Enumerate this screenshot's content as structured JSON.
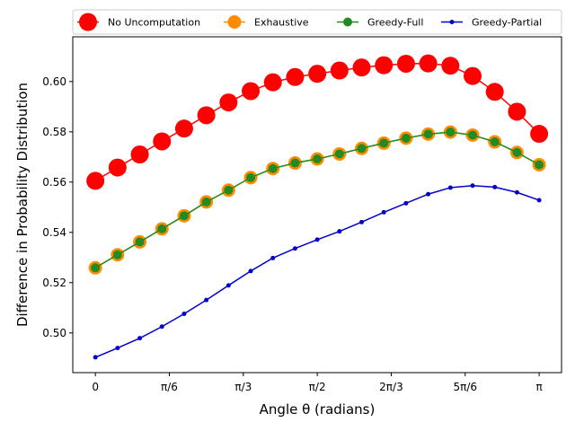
{
  "chart_data": {
    "type": "line",
    "xlabel": "Angle θ (radians)",
    "ylabel": "Difference in Probability Distribution",
    "x_tick_labels": [
      "0",
      "π/6",
      "π/3",
      "π/2",
      "2π/3",
      "5π/6",
      "π"
    ],
    "x_tick_values": [
      0,
      0.5236,
      1.0472,
      1.5708,
      2.0944,
      2.618,
      3.1416
    ],
    "y_tick_labels": [
      "0.50",
      "0.52",
      "0.54",
      "0.56",
      "0.58",
      "0.60"
    ],
    "y_tick_values": [
      0.5,
      0.52,
      0.54,
      0.56,
      0.58,
      0.6
    ],
    "xlim": [
      -0.16,
      3.3
    ],
    "ylim": [
      0.4842,
      0.6178
    ],
    "grid": false,
    "legend_position": "top",
    "x": [
      0,
      0.1571,
      0.3142,
      0.4712,
      0.6283,
      0.7854,
      0.9425,
      1.0996,
      1.2566,
      1.4137,
      1.5708,
      1.7279,
      1.885,
      2.042,
      2.1991,
      2.3562,
      2.5133,
      2.6704,
      2.8274,
      2.9845,
      3.1416
    ],
    "series": [
      {
        "name": "No Uncomputation",
        "color": "#ff0000",
        "marker_color": "#ff0000",
        "marker": "large",
        "values": [
          0.5605,
          0.5658,
          0.571,
          0.5762,
          0.5813,
          0.5866,
          0.5917,
          0.5962,
          0.5997,
          0.6018,
          0.6031,
          0.6044,
          0.6056,
          0.6065,
          0.6071,
          0.6072,
          0.6063,
          0.6022,
          0.5959,
          0.588,
          0.5792
        ]
      },
      {
        "name": "Exhaustive",
        "color": "#ff8c00",
        "marker_color": "#ff8c00",
        "marker": "medium",
        "values": [
          0.5259,
          0.5311,
          0.5362,
          0.5414,
          0.5466,
          0.5521,
          0.5568,
          0.5618,
          0.5654,
          0.5676,
          0.5692,
          0.5712,
          0.5734,
          0.5755,
          0.5775,
          0.5791,
          0.5799,
          0.5787,
          0.576,
          0.5718,
          0.5669
        ]
      },
      {
        "name": "Greedy-Full",
        "color": "#228b22",
        "marker_color": "#228b22",
        "marker": "small",
        "values": [
          0.5259,
          0.5311,
          0.5362,
          0.5414,
          0.5466,
          0.5521,
          0.5568,
          0.5618,
          0.5654,
          0.5676,
          0.5692,
          0.5712,
          0.5734,
          0.5755,
          0.5775,
          0.5791,
          0.5799,
          0.5787,
          0.576,
          0.5718,
          0.5669
        ]
      },
      {
        "name": "Greedy-Partial",
        "color": "#0000cd",
        "marker_color": "#0000cd",
        "marker": "dot",
        "values": [
          0.4903,
          0.494,
          0.4979,
          0.5025,
          0.5076,
          0.5131,
          0.5189,
          0.5246,
          0.5298,
          0.5336,
          0.5371,
          0.5404,
          0.5441,
          0.548,
          0.5516,
          0.5552,
          0.5578,
          0.5586,
          0.558,
          0.5559,
          0.5528
        ]
      }
    ]
  }
}
